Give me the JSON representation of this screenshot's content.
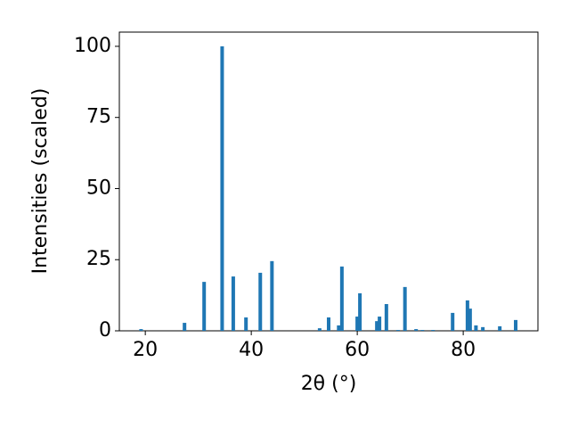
{
  "chart_data": {
    "type": "bar",
    "xlabel": "2θ (°)",
    "ylabel": "Intensities (scaled)",
    "x": [
      19.2,
      27.4,
      31.1,
      34.5,
      36.6,
      39.0,
      41.7,
      43.9,
      52.9,
      54.6,
      56.5,
      57.1,
      60.0,
      60.5,
      63.7,
      64.2,
      65.5,
      67.7,
      69.0,
      71.1,
      72.3,
      74.3,
      78.0,
      80.8,
      81.3,
      82.4,
      83.7,
      86.9,
      89.9
    ],
    "values": [
      0.6,
      2.8,
      17.2,
      100,
      19.1,
      4.7,
      20.4,
      24.5,
      0.9,
      4.7,
      1.9,
      22.6,
      5.0,
      13.2,
      3.4,
      5.0,
      9.4,
      0.3,
      15.4,
      0.6,
      0.3,
      0.3,
      6.3,
      10.7,
      7.8,
      1.9,
      1.3,
      1.6,
      3.8
    ],
    "color": "#1f77b4",
    "xlim": [
      15.1,
      94.1
    ],
    "xticks": [
      20,
      40,
      60,
      80
    ],
    "ylim": [
      0,
      105
    ],
    "yticks": [
      0,
      25,
      50,
      75,
      100
    ],
    "grid": false
  }
}
